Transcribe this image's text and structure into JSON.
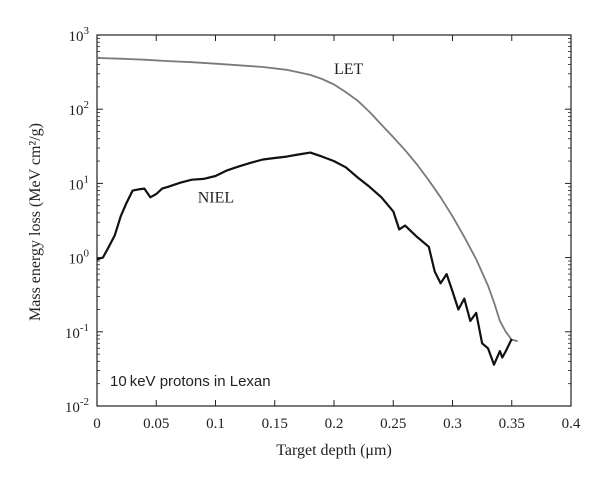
{
  "chart_data": {
    "type": "line",
    "title": "",
    "xlabel": "Target depth (μm)",
    "ylabel": "Mass energy loss (MeV cm²/g)",
    "xlim": [
      0,
      0.4
    ],
    "ylim": [
      0.01,
      1000
    ],
    "yscale": "log",
    "grid": false,
    "x_ticks": [
      "0",
      "0.05",
      "0.1",
      "0.15",
      "0.2",
      "0.25",
      "0.3",
      "0.35",
      "0.4"
    ],
    "y_ticks": [
      {
        "value": 0.01,
        "base": "10",
        "exp": "-2"
      },
      {
        "value": 0.1,
        "base": "10",
        "exp": "-1"
      },
      {
        "value": 1,
        "base": "10",
        "exp": "0"
      },
      {
        "value": 10,
        "base": "10",
        "exp": "1"
      },
      {
        "value": 100,
        "base": "10",
        "exp": "2"
      },
      {
        "value": 1000,
        "base": "10",
        "exp": "3"
      }
    ],
    "annotation": "10 keV protons in Lexan",
    "colors": {
      "LET": "#7a7a7a",
      "NIEL": "#111111",
      "axis": "#222222"
    },
    "series": [
      {
        "name": "LET",
        "label_anchor": {
          "x": 0.2,
          "y": 300
        },
        "x": [
          0,
          0.02,
          0.04,
          0.06,
          0.08,
          0.1,
          0.12,
          0.14,
          0.16,
          0.18,
          0.19,
          0.2,
          0.21,
          0.22,
          0.23,
          0.24,
          0.25,
          0.26,
          0.27,
          0.28,
          0.29,
          0.3,
          0.31,
          0.32,
          0.33,
          0.335,
          0.34,
          0.345,
          0.35,
          0.355
        ],
        "y": [
          490,
          480,
          465,
          445,
          430,
          410,
          390,
          370,
          340,
          290,
          255,
          215,
          170,
          130,
          92,
          62,
          42,
          28,
          18,
          11,
          6.5,
          3.6,
          1.9,
          0.95,
          0.42,
          0.25,
          0.14,
          0.1,
          0.078,
          0.075
        ]
      },
      {
        "name": "NIEL",
        "label_anchor": {
          "x": 0.085,
          "y": 5.5
        },
        "x": [
          0,
          0.005,
          0.01,
          0.015,
          0.02,
          0.025,
          0.03,
          0.035,
          0.04,
          0.045,
          0.05,
          0.055,
          0.06,
          0.07,
          0.08,
          0.09,
          0.1,
          0.11,
          0.12,
          0.13,
          0.14,
          0.15,
          0.16,
          0.17,
          0.18,
          0.19,
          0.2,
          0.21,
          0.22,
          0.23,
          0.24,
          0.25,
          0.255,
          0.26,
          0.27,
          0.28,
          0.285,
          0.29,
          0.295,
          0.3,
          0.305,
          0.31,
          0.315,
          0.32,
          0.325,
          0.33,
          0.335,
          0.34,
          0.342,
          0.345,
          0.35
        ],
        "y": [
          0.95,
          1.0,
          1.4,
          2.0,
          3.6,
          5.5,
          8.0,
          8.3,
          8.5,
          6.5,
          7.2,
          8.5,
          9.0,
          10.2,
          11.2,
          11.5,
          12.6,
          15,
          17,
          19,
          21,
          22,
          23,
          24.5,
          26,
          23,
          20,
          16.5,
          12,
          9,
          6.5,
          4.2,
          2.4,
          2.7,
          1.9,
          1.4,
          0.65,
          0.45,
          0.6,
          0.35,
          0.2,
          0.28,
          0.14,
          0.18,
          0.07,
          0.06,
          0.036,
          0.055,
          0.045,
          0.055,
          0.08
        ]
      }
    ]
  }
}
